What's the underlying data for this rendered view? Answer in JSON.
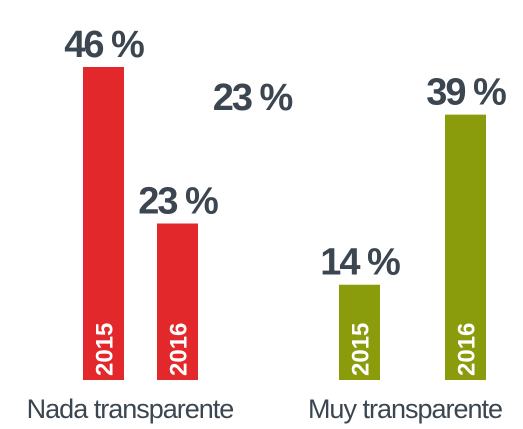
{
  "chart_data": {
    "type": "bar",
    "annotation": "23 %",
    "groups": [
      {
        "name": "Nada transparente",
        "color": "#e3282b",
        "bars": [
          {
            "label": "2015",
            "value": 46,
            "value_label": "46 %"
          },
          {
            "label": "2016",
            "value": 23,
            "value_label": "23 %"
          }
        ]
      },
      {
        "name": "Muy transparente",
        "color": "#8a9c0c",
        "bars": [
          {
            "label": "2015",
            "value": 14,
            "value_label": "14 %"
          },
          {
            "label": "2016",
            "value": 39,
            "value_label": "39 %"
          }
        ]
      }
    ]
  }
}
